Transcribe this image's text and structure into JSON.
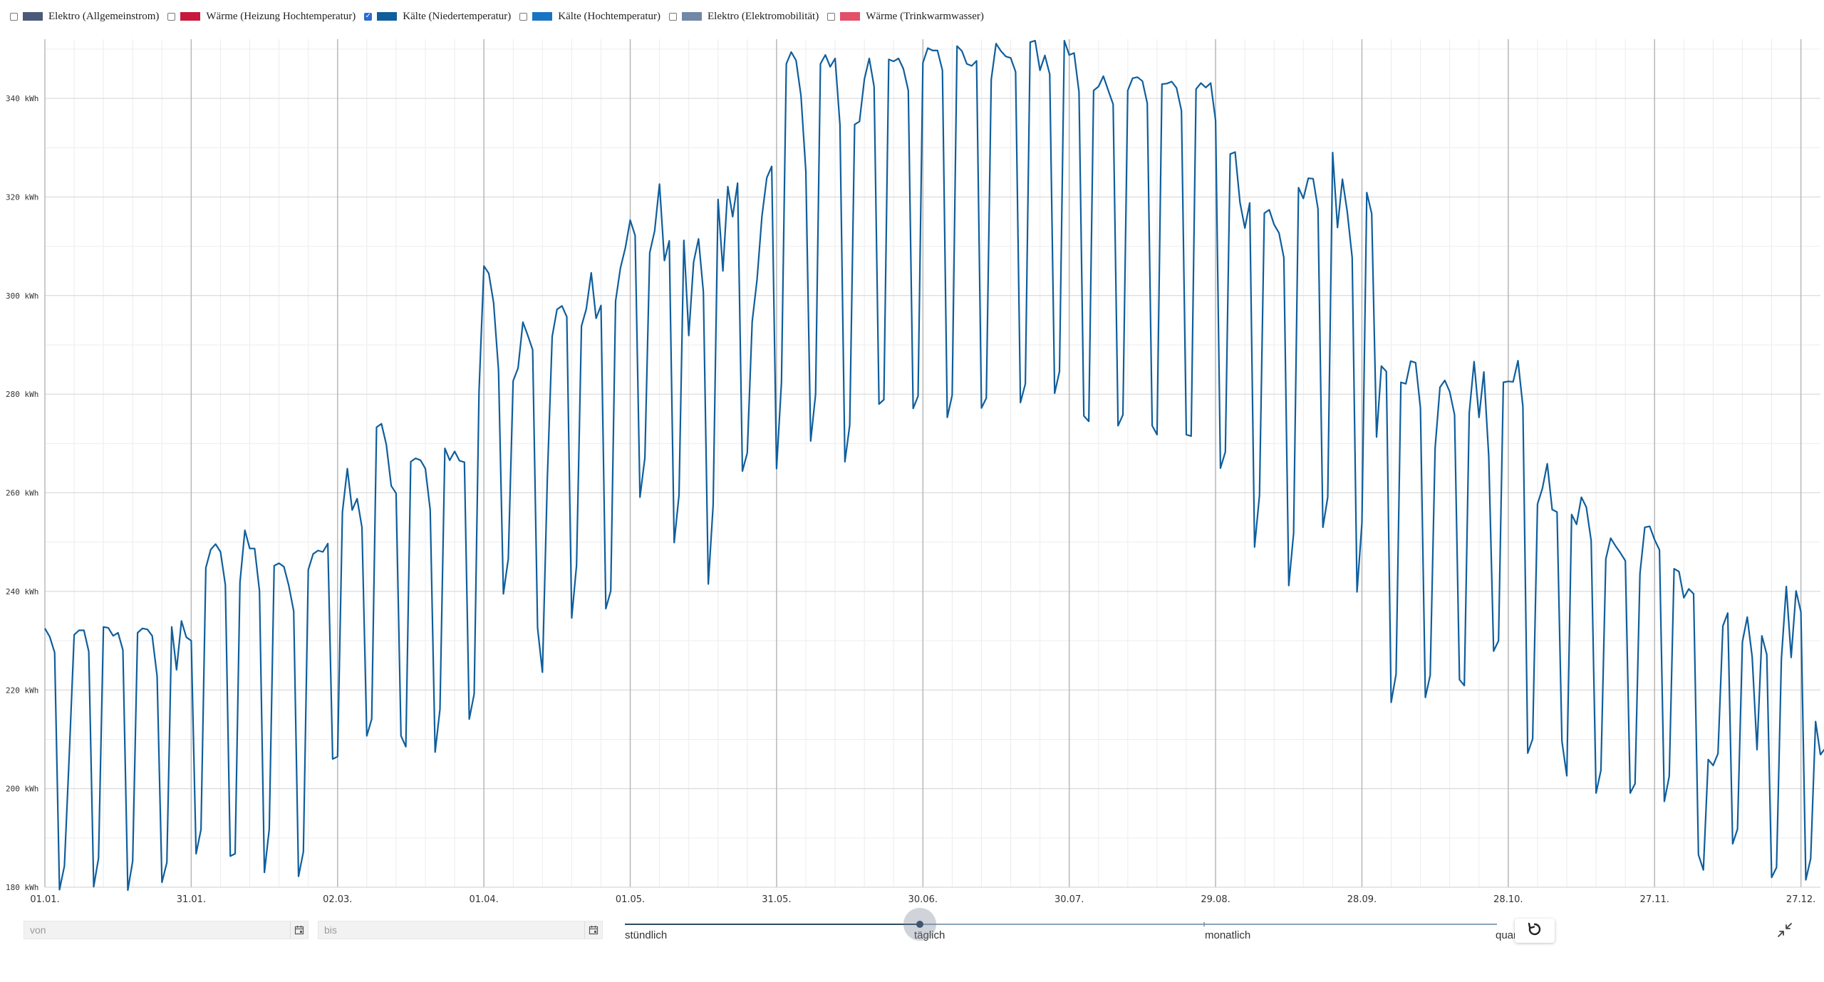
{
  "legend": [
    {
      "label": "Elektro (Allgemeinstrom)",
      "color": "#4a5a78",
      "checked": false
    },
    {
      "label": "Wärme (Heizung Hochtemperatur)",
      "color": "#c8173c",
      "checked": false
    },
    {
      "label": "Kälte (Niedertemperatur)",
      "color": "#0f5e9c",
      "checked": true
    },
    {
      "label": "Kälte (Hochtemperatur)",
      "color": "#1b73c4",
      "checked": false
    },
    {
      "label": "Elektro (Elektromobilität)",
      "color": "#7188a6",
      "checked": false
    },
    {
      "label": "Wärme (Trinkwarmwasser)",
      "color": "#e2506a",
      "checked": false
    }
  ],
  "chart_data": {
    "type": "line",
    "unit": "kWh",
    "ylim": [
      180,
      352
    ],
    "yticks": [
      180,
      200,
      220,
      240,
      260,
      280,
      300,
      320,
      340
    ],
    "ytick_labels": [
      "180 kWh",
      "200 kWh",
      "220 kWh",
      "240 kWh",
      "260 kWh",
      "280 kWh",
      "300 kWh",
      "320 kWh",
      "340 kWh"
    ],
    "xlim": [
      0,
      364
    ],
    "xticks": [
      0,
      30,
      60,
      90,
      120,
      150,
      180,
      210,
      240,
      270,
      300,
      330,
      360
    ],
    "xtick_labels": [
      "01.01.",
      "31.01.",
      "02.03.",
      "01.04.",
      "01.05.",
      "31.05.",
      "30.06.",
      "30.07.",
      "29.08.",
      "28.09.",
      "28.10.",
      "27.11.",
      "27.12."
    ],
    "grid": true,
    "line_color": "#0f5e9c",
    "series": [
      {
        "name": "Kälte (Niedertemperatur)",
        "values": [
          232.5,
          230.8,
          227.6,
          179.5,
          184.3,
          206.8,
          231.2,
          232.1,
          232.1,
          227.8,
          180.1,
          185.9,
          232.8,
          232.6,
          231.0,
          231.6,
          228.1,
          179.4,
          185.3,
          231.6,
          232.5,
          232.3,
          231.0,
          222.8,
          181.0,
          185.0,
          232.8,
          224.1,
          234.0,
          230.7,
          230.0,
          186.8,
          191.7,
          244.8,
          248.5,
          249.6,
          248.0,
          241.3,
          186.3,
          186.8,
          241.8,
          252.4,
          248.7,
          248.7,
          240.1,
          183.0,
          191.8,
          245.2,
          245.7,
          245.0,
          241.2,
          236.0,
          182.2,
          187.2,
          244.4,
          247.6,
          248.3,
          248.0,
          249.7,
          206.0,
          206.5,
          256.1,
          264.9,
          256.5,
          258.8,
          253.0,
          210.7,
          214.1,
          273.3,
          274.0,
          269.8,
          261.4,
          259.9,
          210.7,
          208.5,
          266.3,
          267.0,
          266.6,
          264.9,
          256.5,
          207.4,
          216.1,
          269.0,
          266.6,
          268.4,
          266.5,
          266.2,
          214.1,
          219.2,
          280.5,
          306.0,
          304.5,
          298.5,
          284.8,
          239.5,
          246.6,
          282.7,
          285.3,
          294.6,
          291.9,
          289.0,
          232.6,
          223.6,
          262.9,
          291.7,
          297.2,
          297.9,
          295.7,
          234.6,
          245.3,
          293.8,
          297.3,
          304.6,
          295.4,
          298.0,
          236.5,
          240.1,
          298.9,
          305.6,
          309.7,
          315.3,
          312.2,
          259.1,
          267.1,
          308.7,
          313.1,
          322.6,
          307.1,
          311.1,
          249.9,
          259.5,
          311.2,
          291.9,
          306.8,
          311.5,
          300.7,
          241.5,
          257.5,
          319.5,
          305.0,
          322.1,
          316.0,
          322.8,
          264.4,
          268.1,
          294.7,
          303.2,
          316.1,
          323.9,
          326.2,
          264.9,
          282.4,
          347.0,
          349.4,
          347.7,
          340.5,
          325.2,
          270.5,
          280.0,
          347.0,
          348.8,
          346.4,
          348.1,
          334.6,
          266.3,
          273.7,
          334.7,
          335.3,
          343.9,
          348.1,
          342.4,
          278.0,
          278.9,
          347.9,
          347.5,
          348.1,
          346.0,
          341.6,
          277.1,
          279.6,
          347.2,
          350.2,
          349.7,
          349.7,
          345.7,
          275.3,
          279.8,
          350.6,
          349.6,
          347.0,
          346.6,
          347.6,
          277.2,
          279.2,
          343.8,
          351.1,
          349.6,
          348.5,
          348.2,
          345.4,
          278.3,
          282.1,
          351.4,
          351.7,
          345.7,
          348.7,
          344.9,
          280.2,
          284.6,
          351.7,
          348.8,
          349.2,
          341.3,
          275.6,
          274.5,
          341.6,
          342.4,
          344.5,
          341.6,
          338.8,
          273.6,
          275.8,
          341.6,
          344.1,
          344.3,
          343.5,
          339.0,
          273.6,
          271.8,
          342.9,
          343.0,
          343.4,
          342.1,
          337.5,
          271.8,
          271.5,
          341.9,
          343.1,
          342.2,
          343.1,
          335.5,
          265.0,
          268.3,
          328.7,
          329.1,
          318.9,
          313.7,
          318.8,
          249.0,
          259.5,
          316.7,
          317.4,
          314.4,
          312.7,
          307.7,
          241.2,
          251.8,
          321.9,
          319.7,
          323.8,
          323.7,
          317.6,
          253.0,
          259.1,
          329.0,
          313.8,
          323.6,
          317.0,
          307.7,
          239.9,
          253.9,
          320.9,
          316.6,
          271.3,
          285.7,
          284.6,
          217.5,
          223.2,
          282.4,
          282.1,
          286.7,
          286.4,
          277.2,
          218.5,
          223.0,
          269.1,
          281.4,
          282.8,
          280.5,
          275.8,
          222.1,
          220.9,
          276.2,
          286.6,
          275.3,
          284.5,
          267.3,
          227.9,
          230.0,
          282.4,
          282.6,
          282.5,
          286.8,
          277.5,
          207.2,
          210.1,
          257.7,
          260.9,
          265.9,
          256.6,
          256.1,
          209.6,
          202.6,
          255.6,
          253.6,
          259.1,
          257.1,
          250.3,
          199.1,
          203.7,
          246.6,
          250.8,
          249.2,
          247.8,
          246.2,
          199.1,
          201.0,
          243.6,
          253.0,
          253.2,
          250.5,
          248.4,
          197.4,
          202.5,
          244.6,
          244.0,
          238.7,
          240.5,
          239.5,
          186.6,
          183.5,
          205.9,
          204.7,
          207.1,
          233.0,
          235.6,
          188.8,
          191.8,
          229.8,
          234.8,
          226.7,
          207.9,
          231.0,
          227.2,
          182.0,
          184.0,
          226.3,
          241.0,
          226.6,
          240.1,
          235.8,
          181.5,
          185.8,
          213.6,
          206.9,
          208.2
        ]
      }
    ]
  },
  "filters": {
    "from_placeholder": "von",
    "to_placeholder": "bis"
  },
  "granularity": {
    "options": [
      "stündlich",
      "täglich",
      "monatlich",
      "quar"
    ],
    "selected_index": 1,
    "selected_label": "täglich"
  },
  "icons": {
    "calendar": "calendar-icon",
    "reset": "reset-icon",
    "collapse": "collapse-icon"
  }
}
